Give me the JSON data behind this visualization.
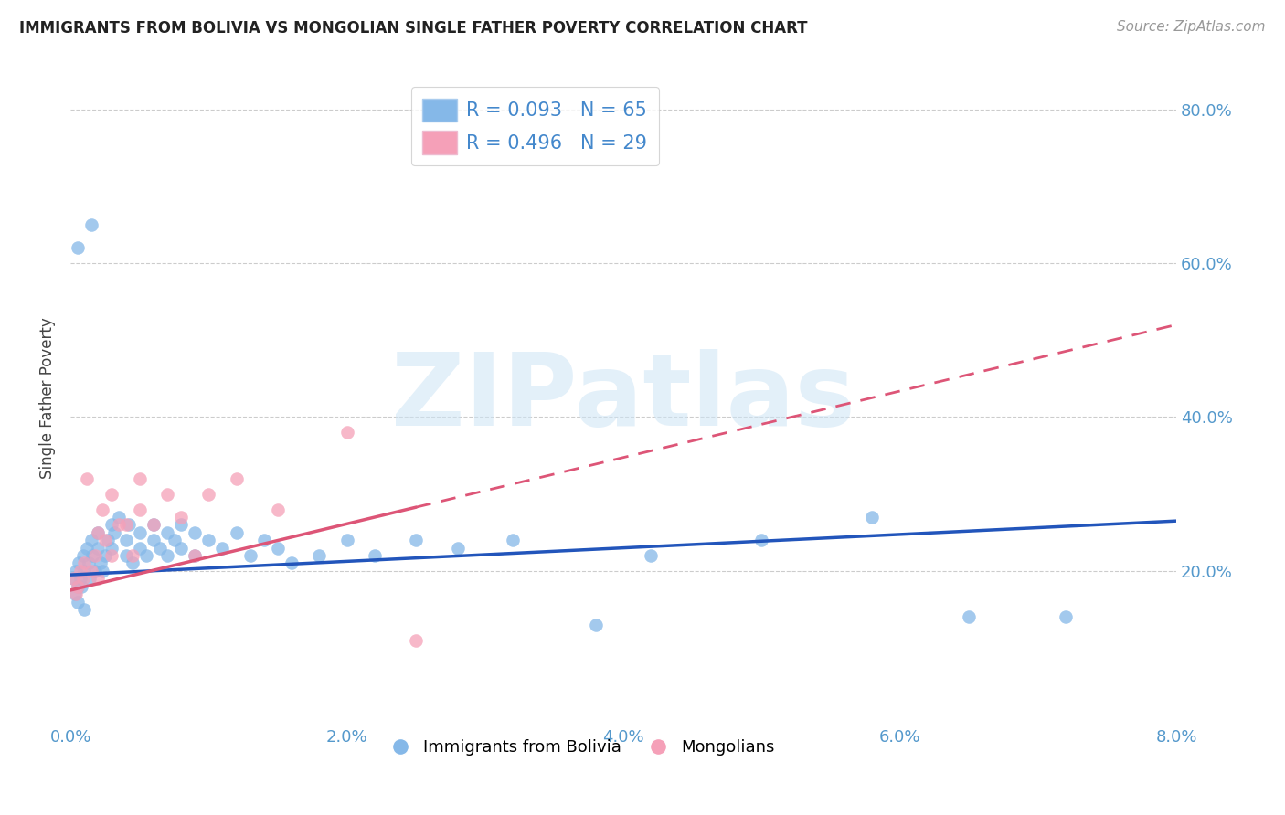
{
  "title": "IMMIGRANTS FROM BOLIVIA VS MONGOLIAN SINGLE FATHER POVERTY CORRELATION CHART",
  "source": "Source: ZipAtlas.com",
  "ylabel": "Single Father Poverty",
  "xlim": [
    0.0,
    0.08
  ],
  "ylim": [
    0.0,
    0.85
  ],
  "xticks": [
    0.0,
    0.02,
    0.04,
    0.06,
    0.08
  ],
  "yticks_right": [
    0.2,
    0.4,
    0.6,
    0.8
  ],
  "ytick_labels_right": [
    "20.0%",
    "40.0%",
    "60.0%",
    "80.0%"
  ],
  "bolivia_color": "#85b8e8",
  "mongolia_color": "#f5a0b8",
  "bolivia_line_color": "#2255bb",
  "mongolia_line_color": "#dd5577",
  "bolivia_R": 0.093,
  "bolivia_N": 65,
  "mongolia_R": 0.496,
  "mongolia_N": 29,
  "legend_label_bolivia": "Immigrants from Bolivia",
  "legend_label_mongolia": "Mongolians",
  "watermark": "ZIPatlas",
  "bolivia_x": [
    0.0002,
    0.0003,
    0.0004,
    0.0005,
    0.0005,
    0.0006,
    0.0007,
    0.0008,
    0.0009,
    0.001,
    0.001,
    0.0012,
    0.0013,
    0.0014,
    0.0015,
    0.0016,
    0.0018,
    0.002,
    0.002,
    0.0022,
    0.0023,
    0.0025,
    0.0027,
    0.003,
    0.003,
    0.0032,
    0.0035,
    0.004,
    0.004,
    0.0042,
    0.0045,
    0.005,
    0.005,
    0.0055,
    0.006,
    0.006,
    0.0065,
    0.007,
    0.007,
    0.0075,
    0.008,
    0.008,
    0.009,
    0.009,
    0.01,
    0.011,
    0.012,
    0.013,
    0.014,
    0.015,
    0.016,
    0.018,
    0.02,
    0.022,
    0.025,
    0.028,
    0.032,
    0.038,
    0.042,
    0.05,
    0.058,
    0.065,
    0.072,
    0.0005,
    0.0015
  ],
  "bolivia_y": [
    0.19,
    0.17,
    0.2,
    0.18,
    0.16,
    0.21,
    0.19,
    0.18,
    0.22,
    0.2,
    0.15,
    0.23,
    0.21,
    0.19,
    0.24,
    0.22,
    0.2,
    0.25,
    0.23,
    0.21,
    0.2,
    0.22,
    0.24,
    0.26,
    0.23,
    0.25,
    0.27,
    0.22,
    0.24,
    0.26,
    0.21,
    0.23,
    0.25,
    0.22,
    0.24,
    0.26,
    0.23,
    0.25,
    0.22,
    0.24,
    0.26,
    0.23,
    0.25,
    0.22,
    0.24,
    0.23,
    0.25,
    0.22,
    0.24,
    0.23,
    0.21,
    0.22,
    0.24,
    0.22,
    0.24,
    0.23,
    0.24,
    0.13,
    0.22,
    0.24,
    0.27,
    0.14,
    0.14,
    0.62,
    0.65
  ],
  "mongolia_x": [
    0.0002,
    0.0004,
    0.0005,
    0.0007,
    0.0009,
    0.001,
    0.0012,
    0.0015,
    0.0018,
    0.002,
    0.002,
    0.0023,
    0.0025,
    0.003,
    0.003,
    0.0035,
    0.004,
    0.0045,
    0.005,
    0.005,
    0.006,
    0.007,
    0.008,
    0.009,
    0.01,
    0.012,
    0.015,
    0.02,
    0.025
  ],
  "mongolia_y": [
    0.19,
    0.17,
    0.18,
    0.2,
    0.19,
    0.21,
    0.32,
    0.2,
    0.22,
    0.25,
    0.19,
    0.28,
    0.24,
    0.3,
    0.22,
    0.26,
    0.26,
    0.22,
    0.28,
    0.32,
    0.26,
    0.3,
    0.27,
    0.22,
    0.3,
    0.32,
    0.28,
    0.38,
    0.11
  ],
  "bolivia_trend": [
    0.0,
    0.08,
    0.195,
    0.265
  ],
  "mongolia_trend": [
    0.0,
    0.08,
    0.175,
    0.52
  ],
  "mongolia_trend_solid_end": 0.025,
  "background_color": "#ffffff",
  "grid_color": "#cccccc",
  "grid_linestyle": "--",
  "title_fontsize": 12,
  "source_fontsize": 11,
  "tick_fontsize": 13,
  "ylabel_fontsize": 12
}
